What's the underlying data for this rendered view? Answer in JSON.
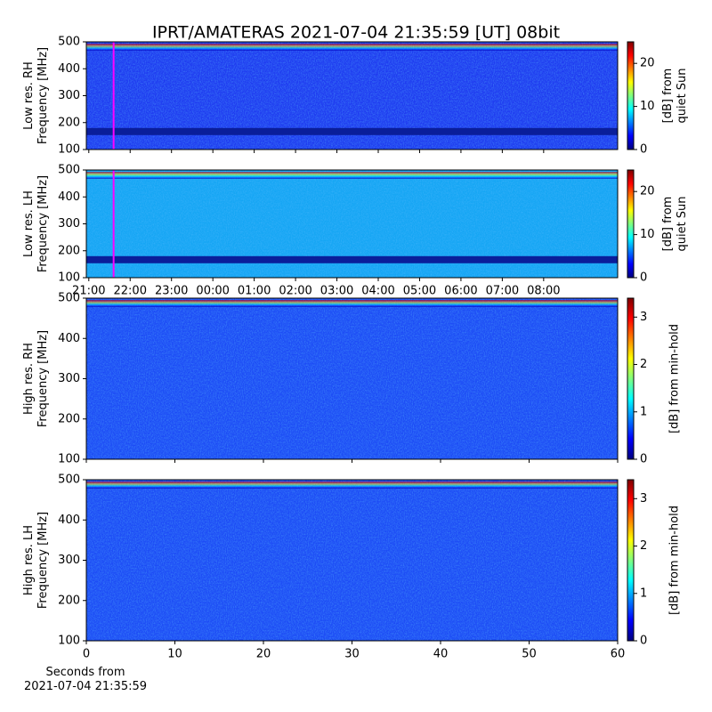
{
  "figure": {
    "title": "IPRT/AMATERAS 2021-07-04 21:35:59 [UT]   08bit",
    "x_label": "Seconds from\n2021-07-04 21:35:59"
  },
  "chart_data": [
    {
      "type": "heatmap",
      "y_label": "Low res. RH\nFrequency [MHz]",
      "ylim": [
        100,
        500
      ],
      "yticks": [
        100,
        200,
        300,
        400,
        500
      ],
      "xlim": [
        20.94,
        33.79
      ],
      "marker_x": 21.6,
      "marker_color": "#ff00ff",
      "colormap": "jet",
      "colorbar": {
        "label": "[dB] from\nquiet Sun",
        "lim": [
          0,
          25
        ],
        "ticks": [
          0,
          10,
          20
        ]
      }
    },
    {
      "type": "heatmap",
      "y_label": "Low res. LH\nFrequency [MHz]",
      "ylim": [
        100,
        500
      ],
      "yticks": [
        100,
        200,
        300,
        400,
        500
      ],
      "xlim": [
        20.94,
        33.79
      ],
      "xticks": [
        {
          "value": 21,
          "label": "21:00"
        },
        {
          "value": 22,
          "label": "22:00"
        },
        {
          "value": 23,
          "label": "23:00"
        },
        {
          "value": 24,
          "label": "00:00"
        },
        {
          "value": 25,
          "label": "01:00"
        },
        {
          "value": 26,
          "label": "02:00"
        },
        {
          "value": 27,
          "label": "03:00"
        },
        {
          "value": 28,
          "label": "04:00"
        },
        {
          "value": 29,
          "label": "05:00"
        },
        {
          "value": 30,
          "label": "06:00"
        },
        {
          "value": 31,
          "label": "07:00"
        },
        {
          "value": 32,
          "label": "08:00"
        }
      ],
      "marker_x": 21.6,
      "marker_color": "#ff00ff",
      "colormap": "jet",
      "colorbar": {
        "label": "[dB] from\nquiet Sun",
        "lim": [
          0,
          25
        ],
        "ticks": [
          0,
          10,
          20
        ]
      }
    },
    {
      "type": "heatmap",
      "y_label": "High res. RH\nFrequency [MHz]",
      "ylim": [
        100,
        500
      ],
      "yticks": [
        100,
        200,
        300,
        400,
        500
      ],
      "xlim": [
        0,
        60
      ],
      "colormap": "jet",
      "colorbar": {
        "label": "[dB] from min-hold",
        "lim": [
          0,
          3.4
        ],
        "ticks": [
          0,
          1,
          2,
          3
        ]
      }
    },
    {
      "type": "heatmap",
      "y_label": "High res. LH\nFrequency [MHz]",
      "ylim": [
        100,
        500
      ],
      "yticks": [
        100,
        200,
        300,
        400,
        500
      ],
      "xlim": [
        0,
        60
      ],
      "xticks": [
        0,
        10,
        20,
        30,
        40,
        50,
        60
      ],
      "colormap": "jet",
      "colorbar": {
        "label": "[dB] from min-hold",
        "lim": [
          0,
          3.4
        ],
        "ticks": [
          0,
          1,
          2,
          3
        ]
      }
    }
  ]
}
